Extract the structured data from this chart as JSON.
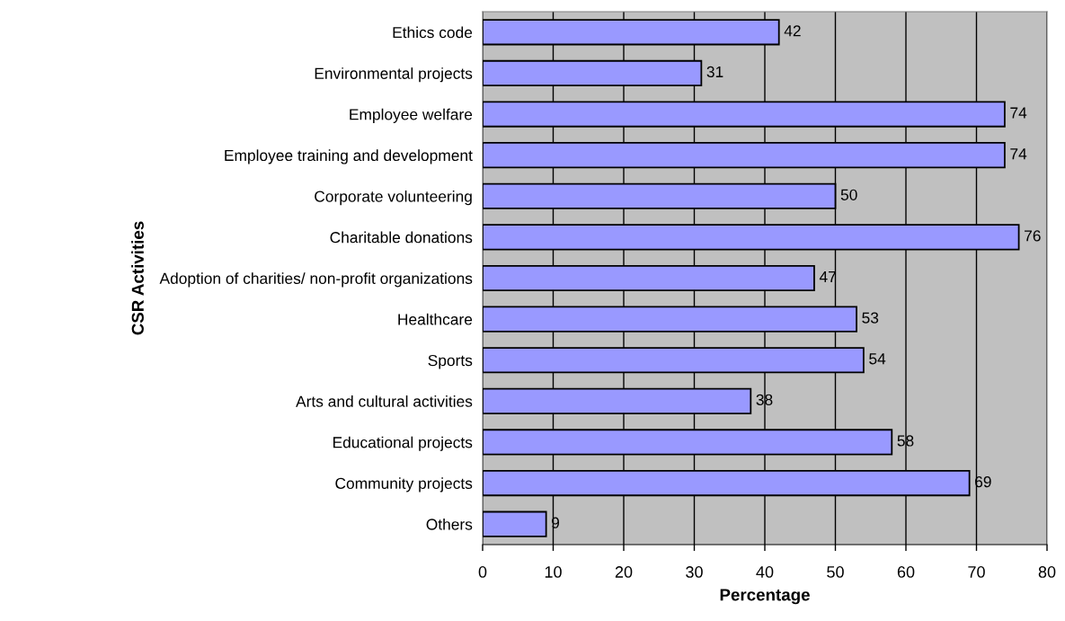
{
  "chart_data": {
    "type": "bar",
    "orientation": "horizontal",
    "categories": [
      "Ethics code",
      "Environmental projects",
      "Employee welfare",
      "Employee training and development",
      "Corporate volunteering",
      "Charitable donations",
      "Adoption of charities/ non-profit organizations",
      "Healthcare",
      "Sports",
      "Arts and cultural activities",
      "Educational projects",
      "Community projects",
      "Others"
    ],
    "values": [
      42,
      31,
      74,
      74,
      50,
      76,
      47,
      53,
      54,
      38,
      58,
      69,
      9
    ],
    "color": "#9999ff",
    "xlabel": "Percentage",
    "ylabel": "CSR Activities",
    "xlim": [
      0,
      80
    ],
    "xticks": [
      0,
      10,
      20,
      30,
      40,
      50,
      60,
      70,
      80
    ],
    "grid": "x",
    "data_labels": true
  }
}
